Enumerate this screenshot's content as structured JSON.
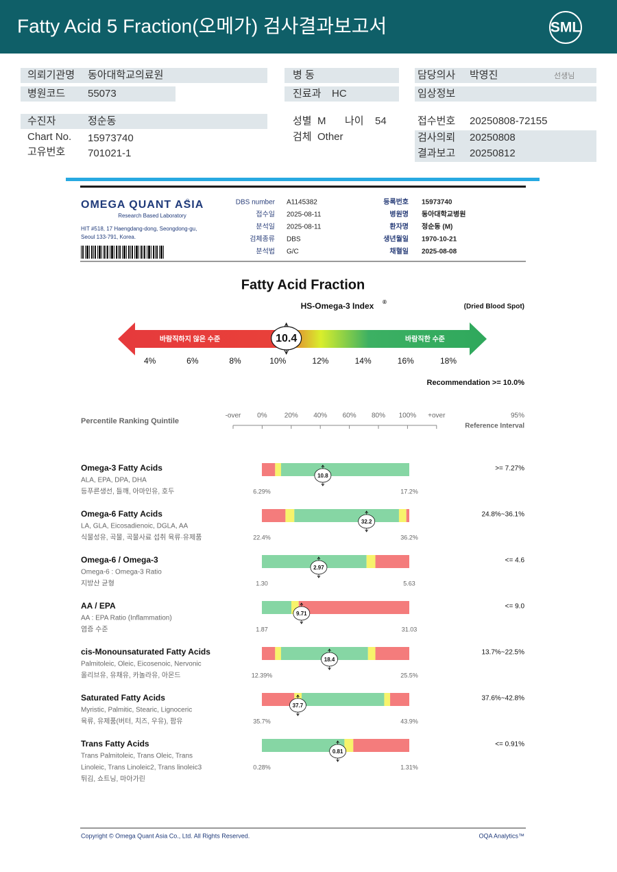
{
  "header": {
    "title": "Fatty Acid 5 Fraction(오메가) 검사결과보고서",
    "logo": "SML"
  },
  "info": {
    "institution": {
      "label": "의뢰기관명",
      "value": "동아대학교의료원"
    },
    "ward": {
      "label": "병 동"
    },
    "doctor": {
      "label": "담당의사",
      "value": "박영진",
      "suffix": "선생님"
    },
    "hospital_code": {
      "label": "병원코드",
      "value": "55073"
    },
    "department": {
      "label": "진료과",
      "value": "HC"
    },
    "clinical_info": {
      "label": "임상정보"
    },
    "patient": {
      "label": "수진자",
      "value": "정순동"
    },
    "sex": {
      "label": "성별",
      "value": "M"
    },
    "age": {
      "label": "나이",
      "value": "54"
    },
    "receipt_no": {
      "label": "접수번호",
      "value": "20250808-72155"
    },
    "chart_no": {
      "label": "Chart No.",
      "value": "15973740"
    },
    "specimen": {
      "label": "검체",
      "value": "Other"
    },
    "request_date": {
      "label": "검사의뢰",
      "value": "20250808"
    },
    "unique_no": {
      "label": "고유번호",
      "value": "701021-1"
    },
    "report_date": {
      "label": "결과보고",
      "value": "20250812"
    }
  },
  "lab": {
    "name": "OMEGA QUANT ASIA",
    "reg": "®",
    "tagline": "Research Based Laboratory",
    "address": [
      "HIT #518, 17 Haengdang-dong, Seongdong-gu,",
      "Seoul 133-791, Korea."
    ],
    "fields_left": [
      {
        "label": "DBS number",
        "value": "A1145382"
      },
      {
        "label": "접수일",
        "value": "2025-08-11"
      },
      {
        "label": "분석일",
        "value": "2025-08-11"
      },
      {
        "label": "검체종류",
        "value": "DBS"
      },
      {
        "label": "분석법",
        "value": "G/C"
      }
    ],
    "fields_right": [
      {
        "label": "등록번호",
        "value": "15973740"
      },
      {
        "label": "병원명",
        "value": "동아대학교병원"
      },
      {
        "label": "환자명",
        "value": "정순동 (M)"
      },
      {
        "label": "생년월일",
        "value": "1970-10-21"
      },
      {
        "label": "채혈일",
        "value": "2025-08-08"
      }
    ]
  },
  "chart_data": {
    "type": "gauge",
    "title": "Fatty Acid Fraction",
    "subtitle": "HS-Omega-3 Index",
    "subtitle_mark": "®",
    "note": "(Dried Blood Spot)",
    "zones": [
      "바람직하지 않은 수준",
      "바람직한 수준"
    ],
    "value": 10.4,
    "xlim": [
      2.5,
      19.8
    ],
    "xticks": [
      {
        "value": 4,
        "label": "4%"
      },
      {
        "value": 6,
        "label": "6%"
      },
      {
        "value": 8,
        "label": "8%"
      },
      {
        "value": 10,
        "label": "10%"
      },
      {
        "value": 12,
        "label": "12%"
      },
      {
        "value": 14,
        "label": "14%"
      },
      {
        "value": 16,
        "label": "16%"
      },
      {
        "value": 18,
        "label": "18%"
      }
    ],
    "recommendation": "Recommendation  >= 10.0%"
  },
  "percentile": {
    "title": "Percentile Ranking Quintile",
    "ticks": [
      "-over",
      "0%",
      "20%",
      "40%",
      "60%",
      "80%",
      "100%",
      "+over"
    ],
    "ref_title": [
      "95%",
      "Reference Interval"
    ]
  },
  "colors": {
    "red": "#f47c7c",
    "yellow": "#f7f36b",
    "green": "#86d6a4"
  },
  "rows": [
    {
      "name": "Omega-3 Fatty Acids",
      "sub": [
        "ALA, EPA, DPA, DHA"
      ],
      "desc": "등푸른생선, 들깨, 아마인유, 호두",
      "value": 10.8,
      "min": {
        "value": 6.29,
        "label": "6.29%"
      },
      "max": {
        "value": 17.2,
        "label": "17.2%"
      },
      "reference": ">= 7.27%",
      "segments": [
        {
          "color": "red",
          "share": 9
        },
        {
          "color": "yellow",
          "share": 4
        },
        {
          "color": "green",
          "share": 87
        }
      ]
    },
    {
      "name": "Omega-6 Fatty Acids",
      "sub": [
        "LA, GLA, Eicosadienoic, DGLA, AA"
      ],
      "desc": "식물성유, 곡물, 곡물사료 섭취 육류·유제품",
      "value": 32.2,
      "min": {
        "value": 22.4,
        "label": "22.4%"
      },
      "max": {
        "value": 36.2,
        "label": "36.2%"
      },
      "reference": "24.8%~36.1%",
      "segments": [
        {
          "color": "red",
          "share": 16
        },
        {
          "color": "yellow",
          "share": 6
        },
        {
          "color": "green",
          "share": 71
        },
        {
          "color": "yellow",
          "share": 5
        },
        {
          "color": "red",
          "share": 2
        }
      ]
    },
    {
      "name": "Omega-6 / Omega-3",
      "sub": [
        "Omega-6 : Omega-3 Ratio"
      ],
      "desc": "지방산 균형",
      "value": 2.97,
      "min": {
        "value": 1.3,
        "label": "1.30"
      },
      "max": {
        "value": 5.63,
        "label": "5.63"
      },
      "reference": "<= 4.6",
      "segments": [
        {
          "color": "green",
          "share": 71
        },
        {
          "color": "yellow",
          "share": 6
        },
        {
          "color": "red",
          "share": 23
        }
      ]
    },
    {
      "name": "AA / EPA",
      "sub": [
        "AA : EPA Ratio (Inflammation)"
      ],
      "desc": "염증 수준",
      "value": 9.71,
      "min": {
        "value": 1.87,
        "label": "1.87"
      },
      "max": {
        "value": 31.03,
        "label": "31.03"
      },
      "reference": "<= 9.0",
      "segments": [
        {
          "color": "green",
          "share": 20
        },
        {
          "color": "yellow",
          "share": 5
        },
        {
          "color": "red",
          "share": 75
        }
      ]
    },
    {
      "name": "cis-Monounsaturated Fatty Acids",
      "sub": [
        "Palmitoleic, Oleic, Eicosenoic, Nervonic"
      ],
      "desc": "올리브유, 유채유, 카놀라유, 아몬드",
      "value": 18.4,
      "min": {
        "value": 12.39,
        "label": "12.39%"
      },
      "max": {
        "value": 25.5,
        "label": "25.5%"
      },
      "reference": "13.7%~22.5%",
      "segments": [
        {
          "color": "red",
          "share": 9
        },
        {
          "color": "yellow",
          "share": 4
        },
        {
          "color": "green",
          "share": 59
        },
        {
          "color": "yellow",
          "share": 5
        },
        {
          "color": "red",
          "share": 23
        }
      ]
    },
    {
      "name": "Saturated Fatty Acids",
      "sub": [
        "Myristic, Palmitic, Stearic, Lignoceric"
      ],
      "desc": "육류, 유제품(버터, 치즈, 우유), 팜유",
      "value": 37.7,
      "min": {
        "value": 35.7,
        "label": "35.7%"
      },
      "max": {
        "value": 43.9,
        "label": "43.9%"
      },
      "reference": "37.6%~42.8%",
      "segments": [
        {
          "color": "red",
          "share": 22
        },
        {
          "color": "yellow",
          "share": 5
        },
        {
          "color": "green",
          "share": 56
        },
        {
          "color": "yellow",
          "share": 4
        },
        {
          "color": "red",
          "share": 13
        }
      ]
    },
    {
      "name": "Trans Fatty Acids",
      "sub": [
        "Trans Palmitoleic, Trans Oleic, Trans",
        "Linoleic, Trans Linoleic2, Trans linoleic3"
      ],
      "desc": "튀김, 쇼트닝, 마아가린",
      "value": 0.81,
      "min": {
        "value": 0.28,
        "label": "0.28%"
      },
      "max": {
        "value": 1.31,
        "label": "1.31%"
      },
      "reference": "<= 0.91%",
      "segments": [
        {
          "color": "green",
          "share": 56
        },
        {
          "color": "yellow",
          "share": 6
        },
        {
          "color": "red",
          "share": 38
        }
      ]
    }
  ],
  "footer": {
    "copyright": "Copyright © Omega Quant Asia Co., Ltd.  All Rights Reserved.",
    "brand": "OQA Analytics™"
  }
}
